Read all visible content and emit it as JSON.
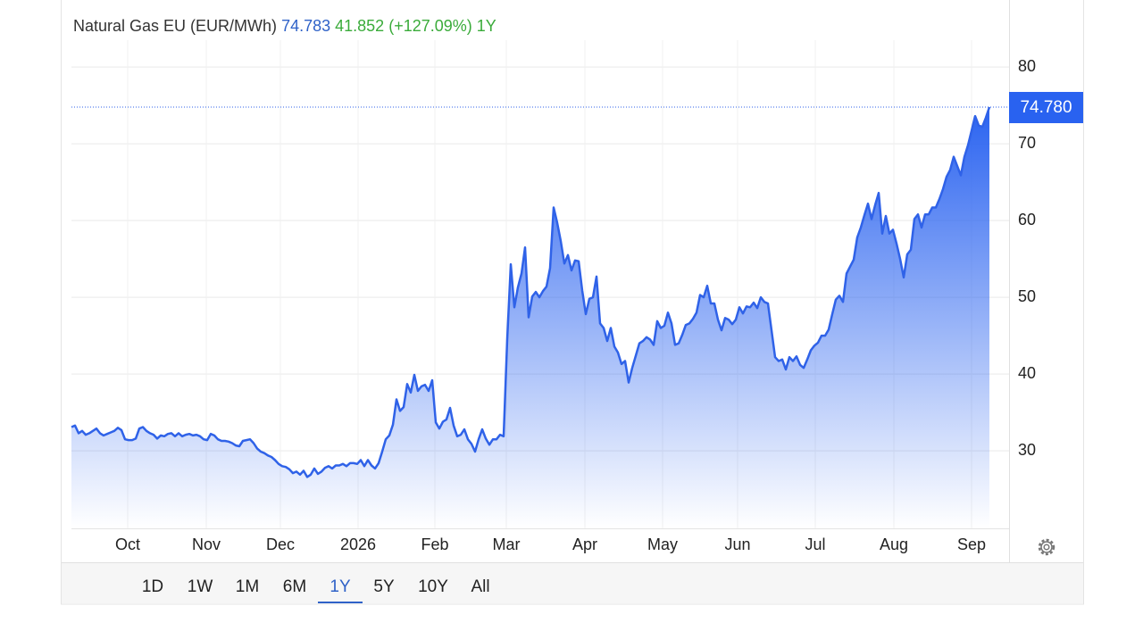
{
  "chart_data": {
    "type": "area",
    "title": "Natural Gas EU (EUR/MWh)",
    "price": "74.783",
    "change": "41.852",
    "change_pct": "(+127.09%)",
    "period": "1Y",
    "color": "#2f62e8",
    "values": [
      33.1,
      33.3,
      32.3,
      32.6,
      32.1,
      32.3,
      32.6,
      32.9,
      32.3,
      32.0,
      32.2,
      32.4,
      32.6,
      33.0,
      32.7,
      31.5,
      31.4,
      31.4,
      31.6,
      32.9,
      33.1,
      32.6,
      32.3,
      32.1,
      31.6,
      32.0,
      31.9,
      32.2,
      32.3,
      31.9,
      32.3,
      31.9,
      32.1,
      32.2,
      32.0,
      32.1,
      31.9,
      31.5,
      31.4,
      32.2,
      32.0,
      31.5,
      31.3,
      31.3,
      31.2,
      31.0,
      30.7,
      30.6,
      31.3,
      31.4,
      31.5,
      31.0,
      30.3,
      29.9,
      29.7,
      29.4,
      29.2,
      28.8,
      28.3,
      28.0,
      27.9,
      27.6,
      27.1,
      27.3,
      26.9,
      27.4,
      26.6,
      26.9,
      27.7,
      27.0,
      27.3,
      27.8,
      28.0,
      27.7,
      28.1,
      28.1,
      28.3,
      28.0,
      28.4,
      28.4,
      28.3,
      28.8,
      28.0,
      28.8,
      28.1,
      27.7,
      28.4,
      29.9,
      31.5,
      32.0,
      33.4,
      36.7,
      35.2,
      35.7,
      38.7,
      37.6,
      39.9,
      37.8,
      38.4,
      38.6,
      37.8,
      39.2,
      33.7,
      32.9,
      33.8,
      34.1,
      35.6,
      33.3,
      31.9,
      32.1,
      32.8,
      31.5,
      30.9,
      29.9,
      31.5,
      32.8,
      31.6,
      30.8,
      31.5,
      31.5,
      32.1,
      31.9,
      44.5,
      54.3,
      48.7,
      51.3,
      53.1,
      56.5,
      47.4,
      50.1,
      50.7,
      50.0,
      50.8,
      51.4,
      53.8,
      61.7,
      59.7,
      57.3,
      54.4,
      55.5,
      53.5,
      54.8,
      54.7,
      50.9,
      47.8,
      49.8,
      50.0,
      52.7,
      46.6,
      46.0,
      44.3,
      46.0,
      43.6,
      42.8,
      41.3,
      41.7,
      38.9,
      40.8,
      42.4,
      44.0,
      44.3,
      44.8,
      44.5,
      43.8,
      46.9,
      46.0,
      46.3,
      48.0,
      46.6,
      43.8,
      44.0,
      45.1,
      46.4,
      46.6,
      47.2,
      48.0,
      50.3,
      50.0,
      51.5,
      49.2,
      49.2,
      47.1,
      45.7,
      47.3,
      47.1,
      46.5,
      47.1,
      48.7,
      47.9,
      48.8,
      48.7,
      49.3,
      48.6,
      50.0,
      49.4,
      49.2,
      45.7,
      42.2,
      41.7,
      41.9,
      40.6,
      42.2,
      41.7,
      42.3,
      41.2,
      40.8,
      41.9,
      43.1,
      43.7,
      44.1,
      45.0,
      45.0,
      45.8,
      47.8,
      49.7,
      50.2,
      49.4,
      53.1,
      54.0,
      54.9,
      57.8,
      59.1,
      60.7,
      62.2,
      60.2,
      62.0,
      63.6,
      58.3,
      60.6,
      58.3,
      58.8,
      57.0,
      55.0,
      52.6,
      55.6,
      56.2,
      60.2,
      60.8,
      59.1,
      60.8,
      60.8,
      61.7,
      61.7,
      62.8,
      64.1,
      65.7,
      66.6,
      68.3,
      67.1,
      65.9,
      68.3,
      69.8,
      71.7,
      73.6,
      72.4,
      72.2,
      73.4,
      74.78
    ],
    "xlim": [
      0,
      257
    ],
    "xticks": [
      {
        "value": 15.75,
        "label": "Oct"
      },
      {
        "value": 37.75,
        "label": "Nov"
      },
      {
        "value": 58.5,
        "label": "Dec"
      },
      {
        "value": 80.25,
        "label": "2026"
      },
      {
        "value": 101.75,
        "label": "Feb"
      },
      {
        "value": 121.75,
        "label": "Mar"
      },
      {
        "value": 143.75,
        "label": "Apr"
      },
      {
        "value": 165.5,
        "label": "May"
      },
      {
        "value": 186.5,
        "label": "Jun"
      },
      {
        "value": 208.25,
        "label": "Jul"
      },
      {
        "value": 230.25,
        "label": "Aug"
      },
      {
        "value": 252,
        "label": "Sep"
      }
    ],
    "ylim": [
      19.9,
      83.5
    ],
    "yticks": [
      30,
      40,
      50,
      60,
      70,
      80
    ],
    "grid": true,
    "price_tag": {
      "value": 74.78,
      "label": "74.780"
    }
  },
  "controls": {
    "ranges": [
      "1D",
      "1W",
      "1M",
      "6M",
      "1Y",
      "5Y",
      "10Y",
      "All"
    ],
    "active": 4
  }
}
